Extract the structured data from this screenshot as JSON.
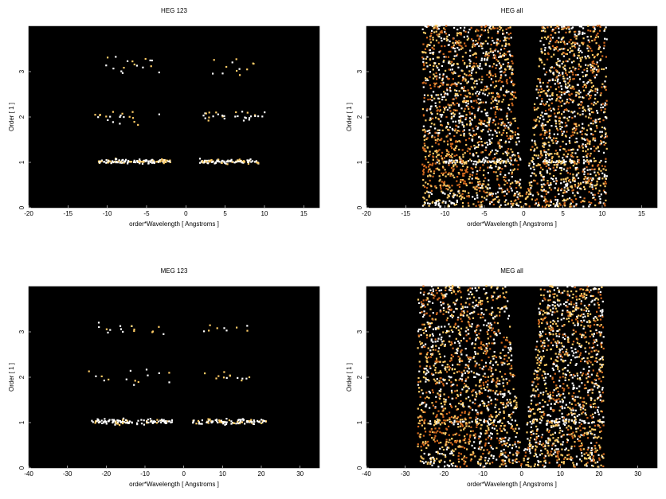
{
  "chart_data": [
    {
      "type": "heatmap",
      "title": "HEG 123",
      "xlabel": "order*Wavelength [ Angstroms ]",
      "ylabel": "Order [ 1 ]",
      "xlim": [
        -20,
        17
      ],
      "ylim": [
        0,
        4
      ],
      "xticks": [
        -20,
        -15,
        -10,
        -5,
        0,
        5,
        10,
        15
      ],
      "yticks": [
        0,
        1,
        2,
        3
      ],
      "colormap": [
        "#000000",
        "#7a1e00",
        "#d2691e",
        "#ffcc66",
        "#ffffff"
      ],
      "bands": [
        {
          "order": 1,
          "y": 1.0,
          "spread": 0.04,
          "xmin": -11.2,
          "xmax": 9.2,
          "gap": [
            -2.0,
            1.5
          ],
          "density": 1.0,
          "intensity": 0.95
        },
        {
          "order": 2,
          "y": 2.0,
          "spread": 0.12,
          "xmin": -12,
          "xmax": 10,
          "gap": [
            -1.5,
            1.5
          ],
          "density": 0.22,
          "intensity": 0.9
        },
        {
          "order": 3,
          "y": 3.1,
          "spread": 0.16,
          "xmin": -11,
          "xmax": 9.5,
          "gap": [
            -3.5,
            2.5
          ],
          "density": 0.15,
          "intensity": 0.9
        }
      ],
      "background_density": 0.0,
      "wedge": null
    },
    {
      "type": "heatmap",
      "title": "HEG all",
      "xlabel": "order*Wavelength [ Angstroms ]",
      "ylabel": "Order [ 1 ]",
      "xlim": [
        -20,
        17
      ],
      "ylim": [
        0,
        4
      ],
      "xticks": [
        -20,
        -15,
        -10,
        -5,
        0,
        5,
        10,
        15
      ],
      "yticks": [
        0,
        1,
        2,
        3
      ],
      "colormap": [
        "#000000",
        "#7a1e00",
        "#d2691e",
        "#ffcc66",
        "#ffffff"
      ],
      "bands": [
        {
          "order": 1,
          "y": 1.0,
          "spread": 0.04,
          "xmin": -11.2,
          "xmax": 9.2,
          "gap": [
            -2.0,
            1.5
          ],
          "density": 0.6,
          "intensity": 0.95
        }
      ],
      "background_density": 0.55,
      "wedge": {
        "left_inner_slope": -0.45,
        "left_outer": -13,
        "right_inner_slope": 0.55,
        "right_outer": 10.5,
        "hot_region": {
          "xmin": -13,
          "xmax": -7,
          "ymax": 1.5
        },
        "hot_floor": {
          "xmin": -13,
          "xmax": -8,
          "ymax": 0.35
        }
      }
    },
    {
      "type": "heatmap",
      "title": "MEG 123",
      "xlabel": "order*Wavelength [ Angstroms ]",
      "ylabel": "Order [ 1 ]",
      "xlim": [
        -40,
        35
      ],
      "ylim": [
        0,
        4
      ],
      "xticks": [
        -40,
        -30,
        -20,
        -10,
        0,
        10,
        20,
        30
      ],
      "yticks": [
        0,
        1,
        2,
        3
      ],
      "colormap": [
        "#000000",
        "#7a1e00",
        "#d2691e",
        "#ffcc66",
        "#ffffff"
      ],
      "bands": [
        {
          "order": 1,
          "y": 1.0,
          "spread": 0.05,
          "xmin": -24,
          "xmax": 21,
          "gap": [
            -2.5,
            2.0
          ],
          "density": 0.9,
          "intensity": 0.95
        },
        {
          "order": 2,
          "y": 2.0,
          "spread": 0.14,
          "xmin": -25,
          "xmax": 22,
          "gap": [
            -3,
            3
          ],
          "density": 0.12,
          "intensity": 0.9
        },
        {
          "order": 3,
          "y": 3.05,
          "spread": 0.14,
          "xmin": -23,
          "xmax": 19,
          "gap": [
            -5,
            4
          ],
          "density": 0.12,
          "intensity": 0.9
        }
      ],
      "background_density": 0.0,
      "wedge": null
    },
    {
      "type": "heatmap",
      "title": "MEG all",
      "xlabel": "order*Wavelength [ Angstroms ]",
      "ylabel": "Order [ 1 ]",
      "xlim": [
        -40,
        35
      ],
      "ylim": [
        0,
        4
      ],
      "xticks": [
        -40,
        -30,
        -20,
        -10,
        0,
        10,
        20,
        30
      ],
      "yticks": [
        0,
        1,
        2,
        3
      ],
      "colormap": [
        "#000000",
        "#7a1e00",
        "#d2691e",
        "#ffcc66",
        "#ffffff"
      ],
      "bands": [
        {
          "order": 1,
          "y": 1.0,
          "spread": 0.05,
          "xmin": -24,
          "xmax": 21,
          "gap": [
            -2.5,
            2.0
          ],
          "density": 0.55,
          "intensity": 0.95
        }
      ],
      "background_density": 0.5,
      "wedge": {
        "left_inner_slope": -0.5,
        "left_outer": -27,
        "right_inner_slope": 0.6,
        "right_outer": 21,
        "hot_region": {
          "xmin": -27,
          "xmax": -13,
          "ymax": 1.3
        },
        "hot_floor": {
          "xmin": -27,
          "xmax": -17,
          "ymax": 0.45
        }
      }
    }
  ]
}
